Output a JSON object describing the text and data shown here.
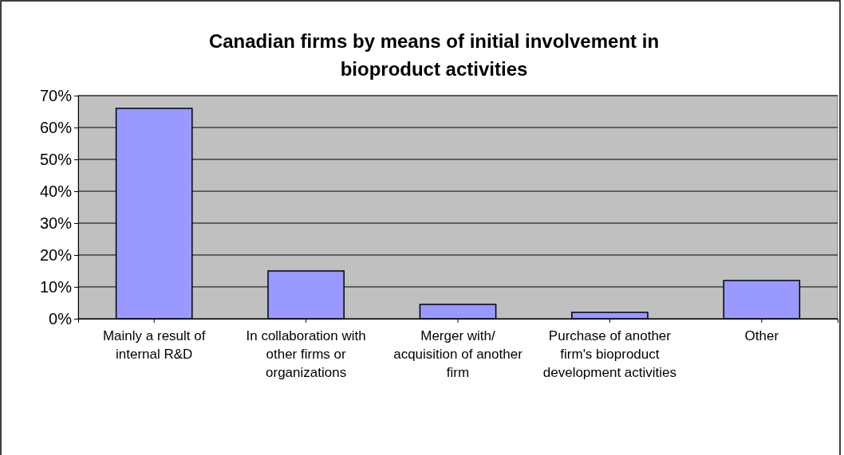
{
  "chart_data": {
    "type": "bar",
    "title": "Canadian firms by means of initial involvement in bioproduct activities",
    "categories": [
      "Mainly a result of internal R&D",
      "In collaboration with other firms or organizations",
      "Merger with/ acquisition of another firm",
      "Purchase of another firm's bioproduct development activities",
      "Other"
    ],
    "values": [
      66,
      15,
      4.5,
      2,
      12
    ],
    "color": "#9999ff",
    "ylim": [
      0,
      70
    ],
    "yticks": [
      {
        "value": 0,
        "label": "0%"
      },
      {
        "value": 10,
        "label": "10%"
      },
      {
        "value": 20,
        "label": "20%"
      },
      {
        "value": 30,
        "label": "30%"
      },
      {
        "value": 40,
        "label": "40%"
      },
      {
        "value": 50,
        "label": "50%"
      },
      {
        "value": 60,
        "label": "60%"
      },
      {
        "value": 70,
        "label": "70%"
      }
    ],
    "grid": "y"
  }
}
